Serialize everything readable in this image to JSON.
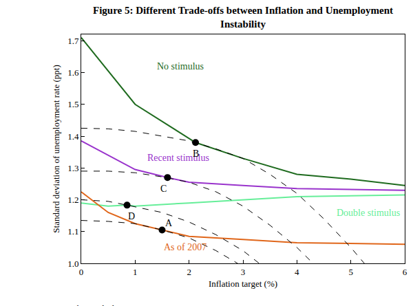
{
  "chart_data": {
    "type": "line",
    "title": [
      "Figure 5: Different Trade-offs between Inflation and Unemployment",
      "Instability"
    ],
    "x_label": "Inflation target (%)",
    "y_label": "Standard deviation of unemployment rate (ppt)",
    "source_label": "Source:",
    "source": "author's calculations",
    "xlim": [
      0,
      6
    ],
    "xticks": [
      0,
      1,
      2,
      3,
      4,
      5,
      6
    ],
    "ylim": [
      1.0,
      1.72
    ],
    "yticks": [
      {
        "value": 1.0,
        "label": "1.0"
      },
      1.1,
      1.2,
      1.3,
      1.4,
      1.5,
      1.6,
      1.7
    ],
    "grid": false,
    "series": [
      {
        "name": "No stimulus",
        "color": "#1f6b1f",
        "line_style": "solid",
        "x": [
          0,
          1,
          2.12,
          3,
          4,
          5,
          6
        ],
        "values": [
          1.71,
          1.5,
          1.38,
          1.33,
          1.28,
          1.265,
          1.245
        ]
      },
      {
        "name": "Recent stimulus",
        "color": "#9933cc",
        "line_style": "solid",
        "x": [
          0,
          1,
          1.6,
          2,
          3,
          4,
          6
        ],
        "values": [
          1.385,
          1.295,
          1.27,
          1.255,
          1.245,
          1.235,
          1.23
        ]
      },
      {
        "name": "Double stimulus",
        "color": "#66ee99",
        "line_style": "solid",
        "x": [
          0,
          0.5,
          0.85,
          1,
          2,
          3,
          4,
          6
        ],
        "values": [
          1.19,
          1.18,
          1.183,
          1.18,
          1.19,
          1.2,
          1.21,
          1.215
        ]
      },
      {
        "name": "As of 2007",
        "color": "#e0661a",
        "line_style": "solid",
        "x": [
          0,
          0.5,
          1,
          1.5,
          2,
          3,
          4,
          6
        ],
        "values": [
          1.225,
          1.16,
          1.125,
          1.105,
          1.085,
          1.075,
          1.065,
          1.06
        ]
      },
      {
        "color": "#000000",
        "line_style": "dashed",
        "x": [
          0,
          0.5,
          1,
          1.5,
          2,
          2.5,
          3,
          3.5,
          4,
          4.5,
          5,
          5.25
        ],
        "values": [
          1.425,
          1.423,
          1.415,
          1.4,
          1.385,
          1.36,
          1.33,
          1.28,
          1.22,
          1.14,
          1.05,
          1.0
        ]
      },
      {
        "color": "#000000",
        "line_style": "dashed",
        "x": [
          0,
          0.5,
          1,
          1.5,
          2,
          2.5,
          3,
          3.5,
          4,
          4.3
        ],
        "values": [
          1.29,
          1.29,
          1.285,
          1.272,
          1.255,
          1.225,
          1.18,
          1.12,
          1.05,
          1.0
        ]
      },
      {
        "color": "#000000",
        "line_style": "dashed",
        "x": [
          0,
          0.5,
          0.85,
          1,
          1.5,
          2,
          2.5,
          3,
          3.3
        ],
        "values": [
          1.2,
          1.195,
          1.183,
          1.178,
          1.16,
          1.13,
          1.09,
          1.04,
          1.0
        ]
      },
      {
        "color": "#000000",
        "line_style": "dashed",
        "x": [
          0,
          0.5,
          1,
          1.5,
          2,
          2.5,
          2.9
        ],
        "values": [
          1.135,
          1.132,
          1.125,
          1.105,
          1.08,
          1.04,
          1.0
        ]
      }
    ],
    "points": {
      "color": "#000000",
      "marker": "circle",
      "labels": [
        "A",
        "B",
        "C",
        "D"
      ],
      "x": [
        1.5,
        2.12,
        1.6,
        0.85
      ],
      "values": [
        1.105,
        1.38,
        1.27,
        1.183
      ]
    }
  }
}
